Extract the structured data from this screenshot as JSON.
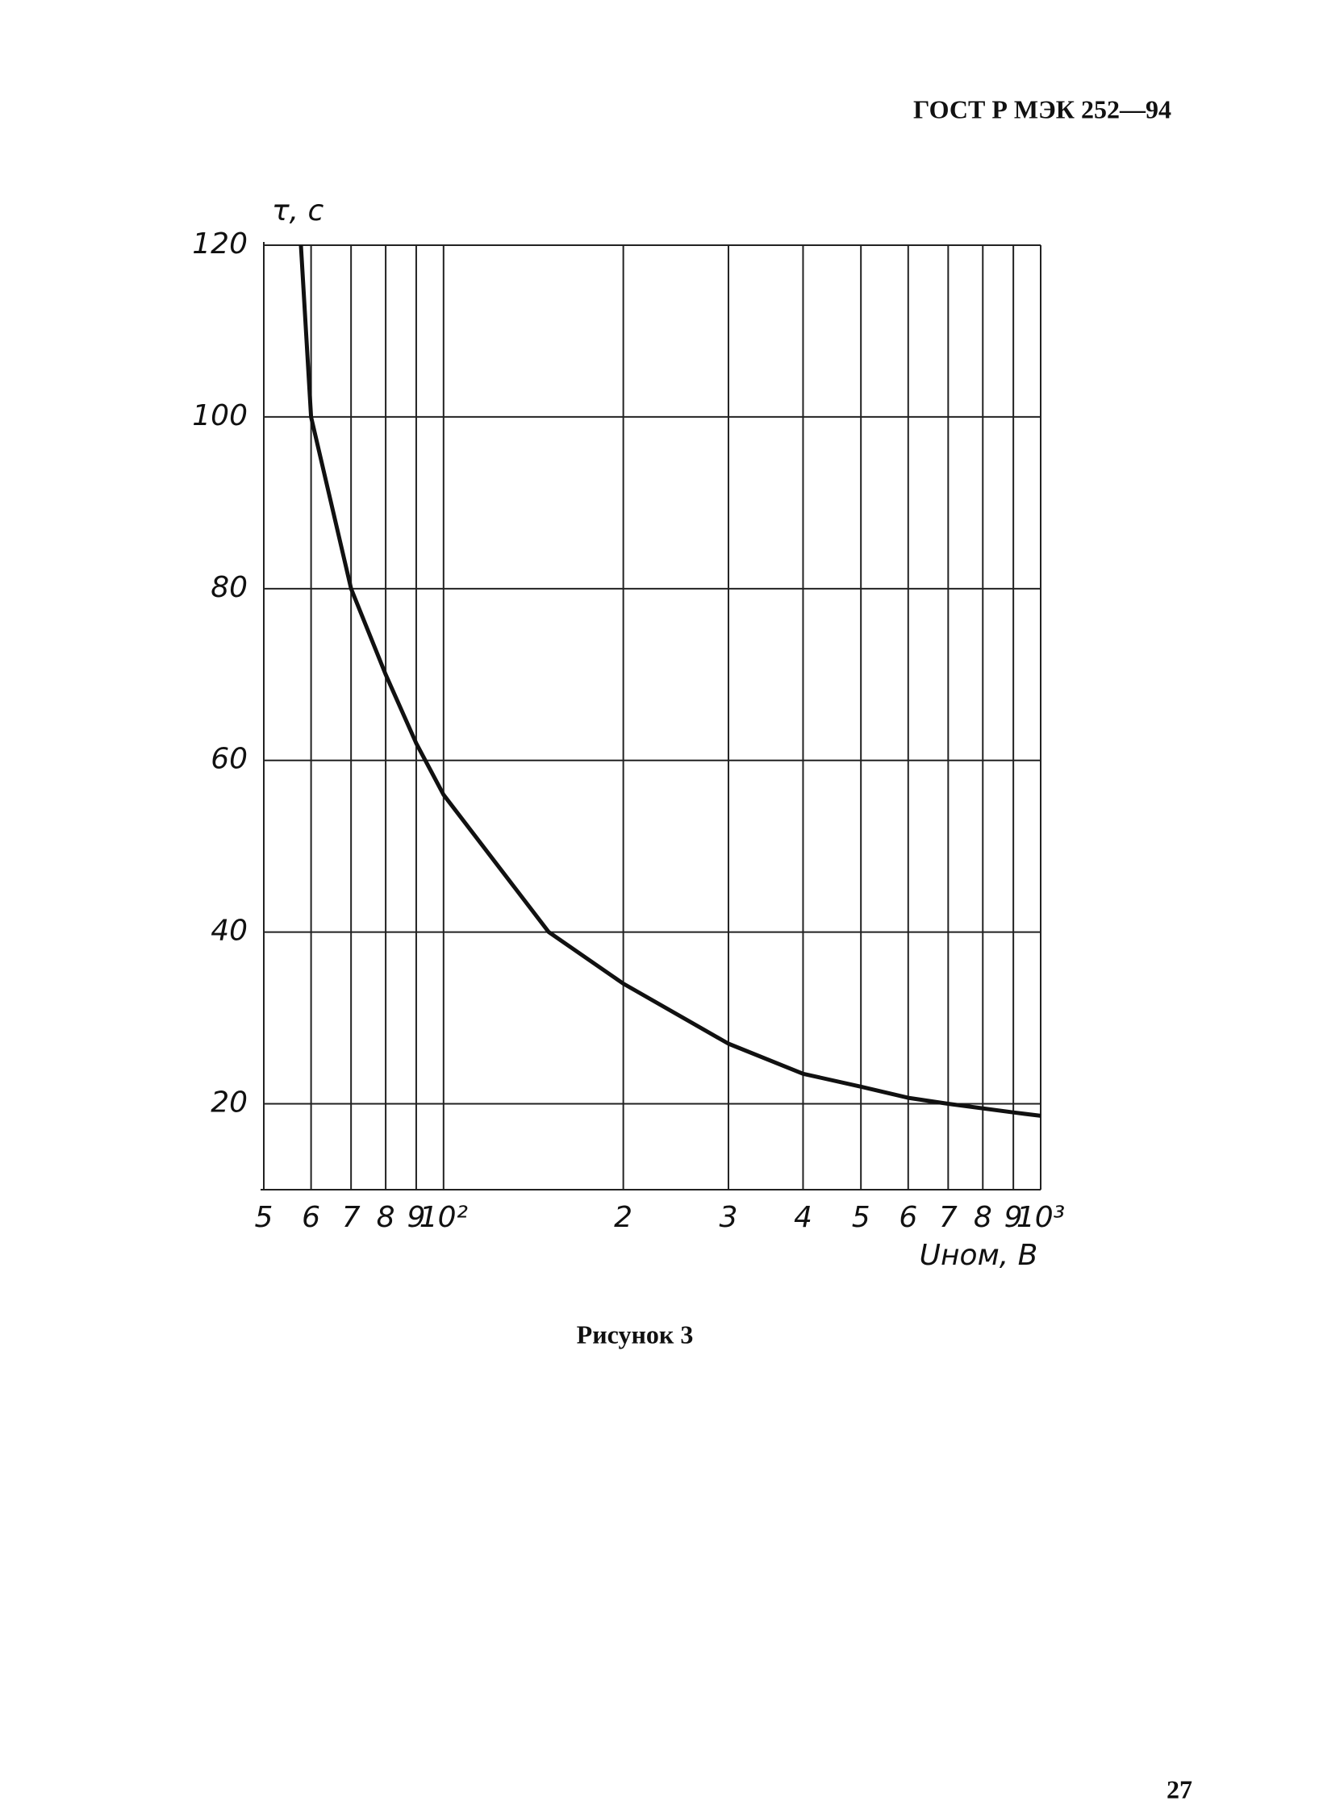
{
  "header": "ГОСТ Р МЭК 252—94",
  "chart_data": {
    "type": "line",
    "x_label": "Uном, В",
    "y_label": "τ, с",
    "x_scale": "log",
    "grid": true,
    "xlim": [
      50,
      1000
    ],
    "ylim": [
      10,
      120
    ],
    "xticks": [
      {
        "value": 50,
        "label": "5"
      },
      {
        "value": 60,
        "label": "6"
      },
      {
        "value": 70,
        "label": "7"
      },
      {
        "value": 80,
        "label": "8"
      },
      {
        "value": 90,
        "label": "9"
      },
      {
        "value": 100,
        "label": "10²"
      },
      {
        "value": 200,
        "label": "2"
      },
      {
        "value": 300,
        "label": "3"
      },
      {
        "value": 400,
        "label": "4"
      },
      {
        "value": 500,
        "label": "5"
      },
      {
        "value": 600,
        "label": "6"
      },
      {
        "value": 700,
        "label": "7"
      },
      {
        "value": 800,
        "label": "8"
      },
      {
        "value": 900,
        "label": "9"
      },
      {
        "value": 1000,
        "label": "10³"
      }
    ],
    "yticks": [
      20,
      40,
      60,
      80,
      100,
      120
    ],
    "series": [
      {
        "color": "#111111",
        "x": [
          57.7,
          60,
          70,
          80,
          90,
          100,
          150,
          200,
          300,
          400,
          500,
          600,
          700,
          900,
          1000
        ],
        "values": [
          120,
          100,
          80,
          70,
          62,
          56,
          40,
          34,
          27,
          23.5,
          22,
          20.7,
          20,
          19,
          18.6
        ]
      }
    ]
  },
  "caption": "Рисунок 3",
  "page_number": 27
}
